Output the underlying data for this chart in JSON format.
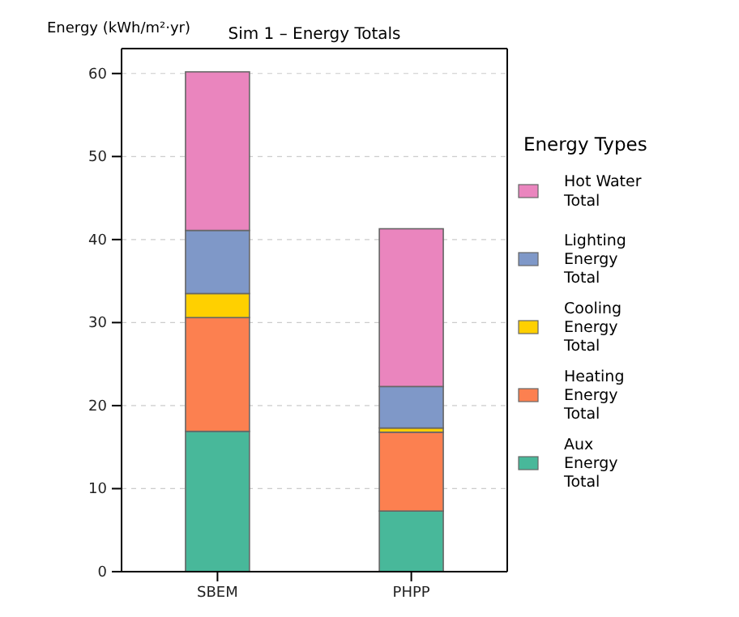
{
  "chart_data": {
    "type": "bar",
    "title": "Sim 1 – Energy Totals",
    "ylabel": "Energy (kWh/m²·yr)",
    "legend_title": "Energy Types",
    "categories": [
      "SBEM",
      "PHPP"
    ],
    "stacked": true,
    "series": [
      {
        "name": "Aux Energy Total",
        "color": "#48b89a",
        "values": [
          16.9,
          7.3
        ]
      },
      {
        "name": "Heating Energy Total",
        "color": "#fc8050",
        "values": [
          13.7,
          9.5
        ]
      },
      {
        "name": "Cooling Energy Total",
        "color": "#ffd000",
        "values": [
          2.9,
          0.5
        ]
      },
      {
        "name": "Lighting Energy Total",
        "color": "#7f98c8",
        "values": [
          7.6,
          5.0
        ]
      },
      {
        "name": "Hot Water Total",
        "color": "#ea85be",
        "values": [
          19.1,
          19.0
        ]
      }
    ],
    "ylim": [
      0,
      63
    ],
    "yticks": [
      0,
      10,
      20,
      30,
      40,
      50,
      60
    ],
    "grid": "y",
    "legend": "right"
  }
}
